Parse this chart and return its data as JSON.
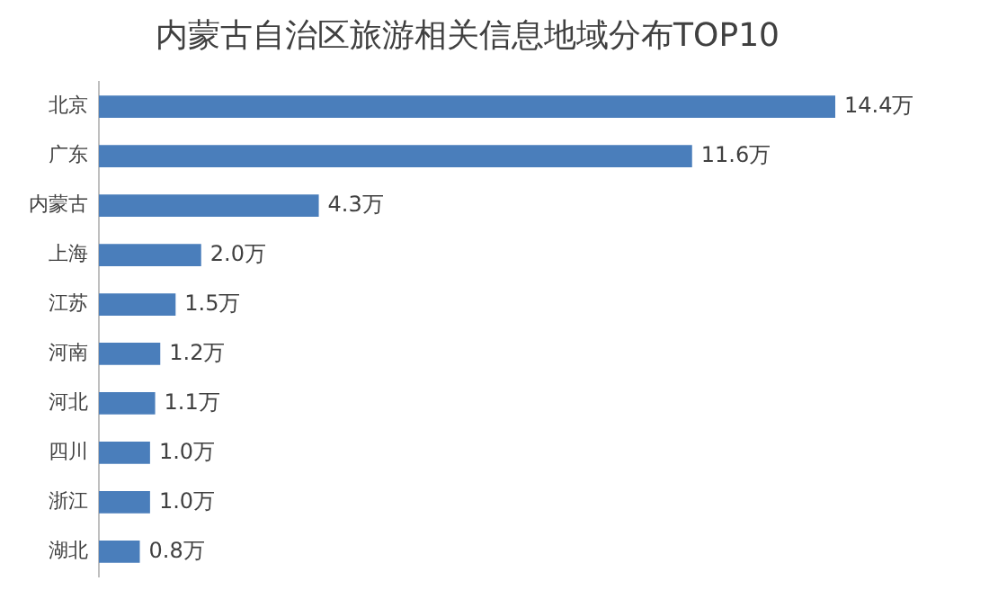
{
  "chart_data": {
    "type": "bar",
    "orientation": "horizontal",
    "title": "内蒙古自治区旅游相关信息地域分布TOP10",
    "categories": [
      "北京",
      "广东",
      "内蒙古",
      "上海",
      "江苏",
      "河南",
      "河北",
      "四川",
      "浙江",
      "湖北"
    ],
    "values": [
      14.4,
      11.6,
      4.3,
      2.0,
      1.5,
      1.2,
      1.1,
      1.0,
      1.0,
      0.8
    ],
    "value_labels": [
      "14.4万",
      "11.6万",
      "4.3万",
      "2.0万",
      "1.5万",
      "1.2万",
      "1.1万",
      "1.0万",
      "1.0万",
      "0.8万"
    ],
    "color": "#4a7ebb",
    "grid": false,
    "legend": false
  }
}
